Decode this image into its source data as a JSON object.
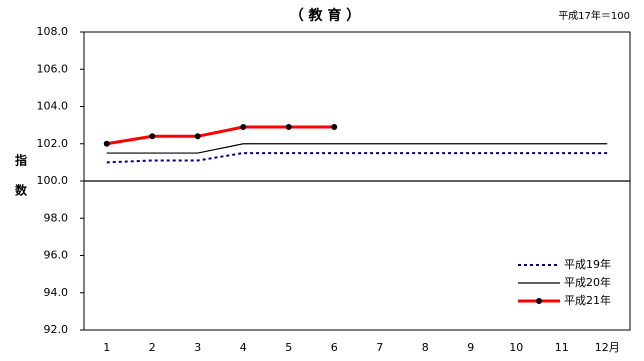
{
  "chart_data": {
    "type": "line",
    "title": "（ 教 育 ）",
    "note": "平成17年＝100",
    "y_label": "指数",
    "categories": [
      "1",
      "2",
      "3",
      "4",
      "5",
      "6",
      "7",
      "8",
      "9",
      "10",
      "11",
      "12月"
    ],
    "series": [
      {
        "name": "平成19年",
        "color": "#000080",
        "style": "dotted",
        "values": [
          101.0,
          101.1,
          101.1,
          101.5,
          101.5,
          101.5,
          101.5,
          101.5,
          101.5,
          101.5,
          101.5,
          101.5
        ]
      },
      {
        "name": "平成20年",
        "color": "#000000",
        "style": "solid",
        "values": [
          101.5,
          101.5,
          101.5,
          102.0,
          102.0,
          102.0,
          102.0,
          102.0,
          102.0,
          102.0,
          102.0,
          102.0
        ]
      },
      {
        "name": "平成21年",
        "color": "#ff0000",
        "style": "marker",
        "values": [
          102.0,
          102.4,
          102.4,
          102.9,
          102.9,
          102.9,
          null,
          null,
          null,
          null,
          null,
          null
        ]
      }
    ],
    "ylim": [
      92.0,
      108.0
    ],
    "yticks": [
      {
        "value": 92,
        "label": "92.0"
      },
      {
        "value": 94,
        "label": "94.0"
      },
      {
        "value": 96,
        "label": "96.0"
      },
      {
        "value": 98,
        "label": "98.0"
      },
      {
        "value": 100,
        "label": "100.0"
      },
      {
        "value": 102,
        "label": "102.0"
      },
      {
        "value": 104,
        "label": "104.0"
      },
      {
        "value": 106,
        "label": "106.0"
      },
      {
        "value": 108,
        "label": "108.0"
      }
    ],
    "reference_line": 100,
    "legend": "bottom-right"
  }
}
